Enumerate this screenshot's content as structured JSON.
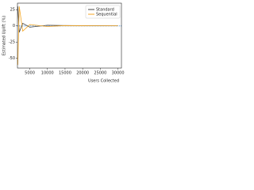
{
  "chart_data": {
    "type": "line",
    "x_label": "Users Collected",
    "y_label": "Estimated Uplift (%)",
    "x": [
      1600,
      2000,
      3000,
      5000,
      10000,
      15000,
      20000,
      25000,
      30000
    ],
    "series": [
      {
        "name": "Standard",
        "color": "#444444",
        "values": [
          30,
          -10,
          4,
          -2,
          1,
          0.5,
          0.3,
          0.2,
          0.1
        ]
      },
      {
        "name": "Sequential",
        "color": "#f5a623",
        "values": [
          -60,
          30,
          -8,
          2,
          -1,
          0.5,
          0.2,
          0.1,
          0.1
        ]
      }
    ],
    "reference_line": {
      "value": 0,
      "color": "#4a90d9"
    },
    "xlim": [
      1500,
      31000
    ],
    "ylim": [
      -65,
      35
    ],
    "xticks": [
      5000,
      10000,
      15000,
      20000,
      25000,
      30000
    ],
    "yticks": [
      25,
      0,
      -25,
      -50
    ],
    "legend": "upper right"
  }
}
